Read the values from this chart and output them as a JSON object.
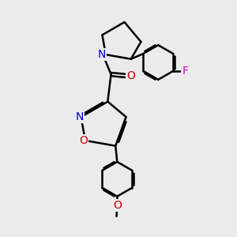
{
  "bg_color": "#ebebeb",
  "bond_color": "#000000",
  "bond_width": 1.8,
  "atom_colors": {
    "N": "#0000cc",
    "O": "#cc0000",
    "F": "#cc00cc",
    "C": "#000000"
  },
  "font_size": 10,
  "figsize": [
    3.0,
    3.0
  ],
  "dpi": 100
}
